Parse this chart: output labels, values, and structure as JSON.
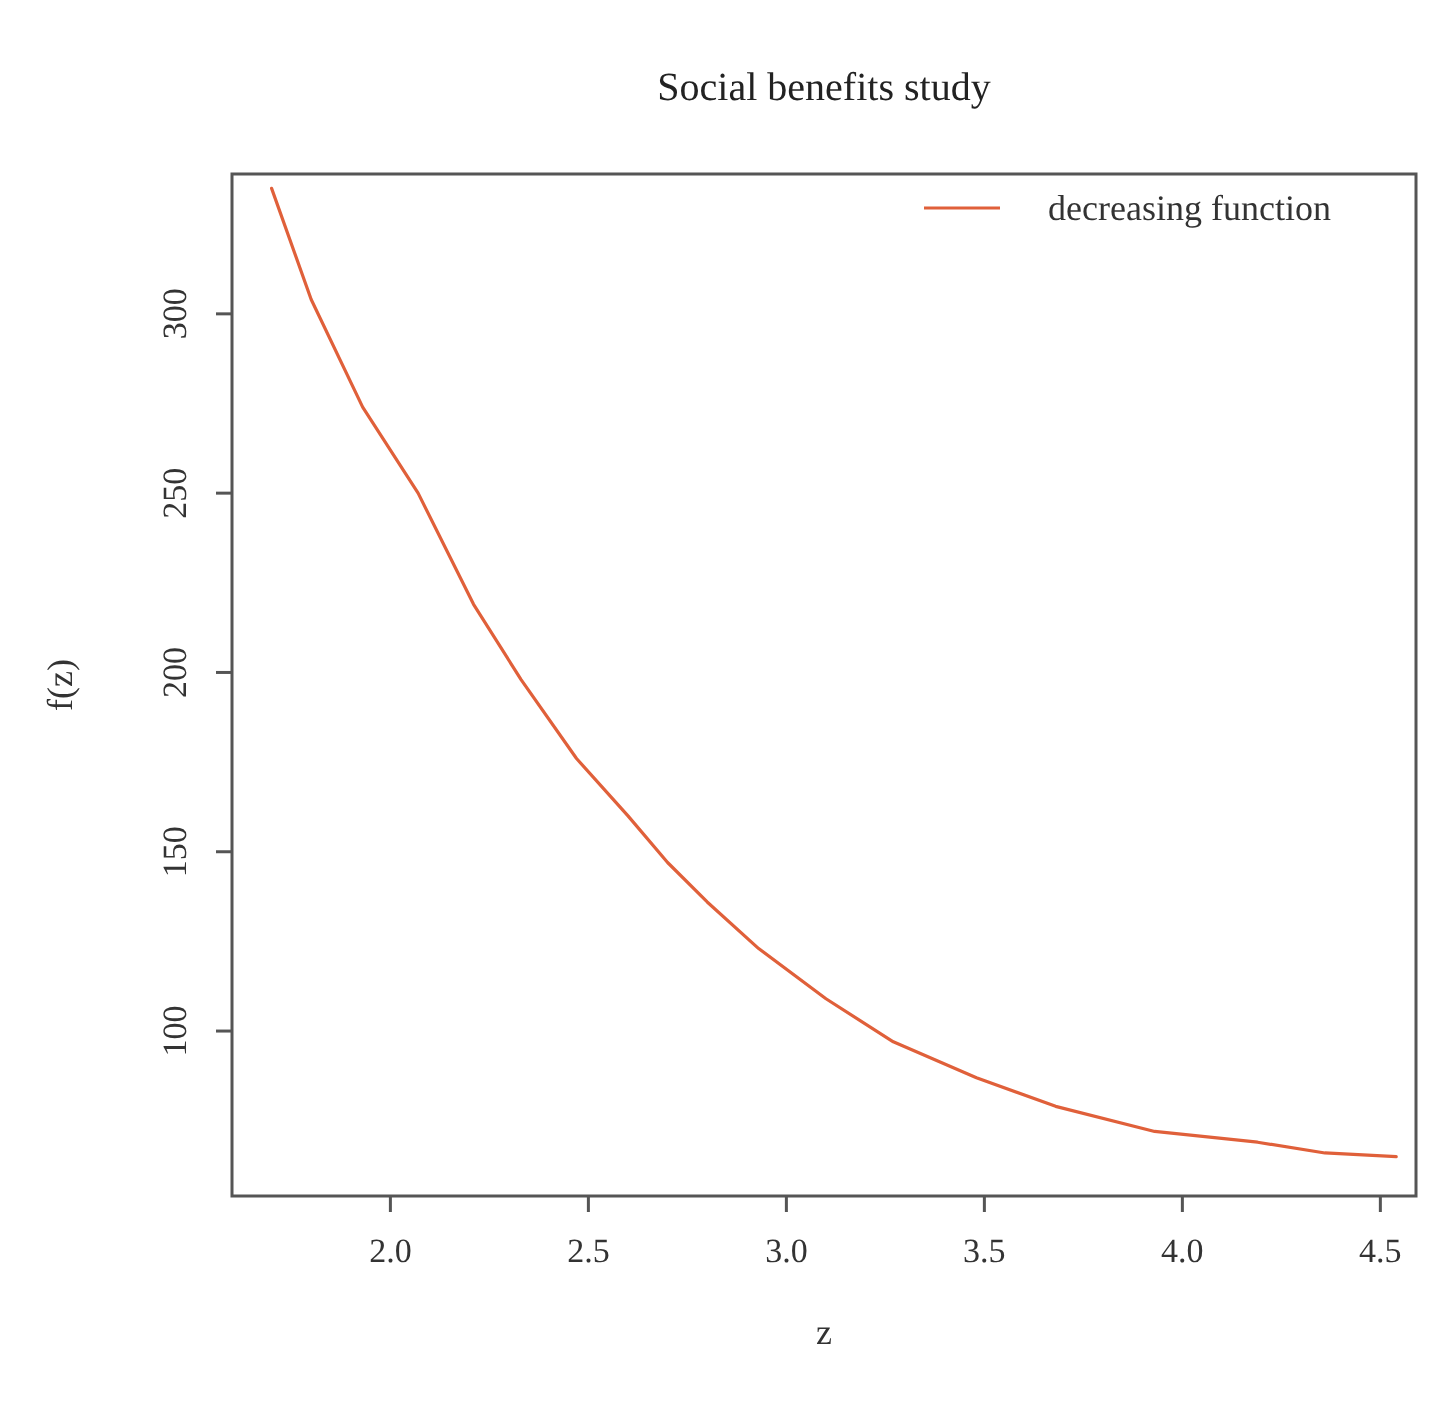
{
  "chart_data": {
    "type": "line",
    "title": "Social benefits study",
    "xlabel": "z",
    "ylabel": "f(z)",
    "x": [
      1.7,
      1.8,
      1.93,
      2.07,
      2.21,
      2.33,
      2.47,
      2.6,
      2.7,
      2.8,
      2.93,
      3.1,
      3.27,
      3.48,
      3.68,
      3.93,
      4.19,
      4.36,
      4.54
    ],
    "series": [
      {
        "name": "decreasing function",
        "color": "#e0603a",
        "values": [
          335,
          304,
          274,
          250,
          219,
          198,
          176,
          160,
          147,
          136,
          123,
          109,
          97,
          87,
          79,
          72,
          69,
          66,
          65
        ]
      }
    ],
    "xlim": [
      1.6,
      4.59
    ],
    "ylim": [
      54,
      339
    ],
    "xticks": [
      {
        "value": 2,
        "label": "2.0"
      },
      2.5,
      {
        "value": 3,
        "label": "3.0"
      },
      3.5,
      {
        "value": 4,
        "label": "4.0"
      },
      4.5
    ],
    "yticks": [
      100,
      150,
      200,
      250,
      300
    ],
    "legend": "top right",
    "grid": false,
    "marker": "none",
    "line_style": "solid"
  }
}
